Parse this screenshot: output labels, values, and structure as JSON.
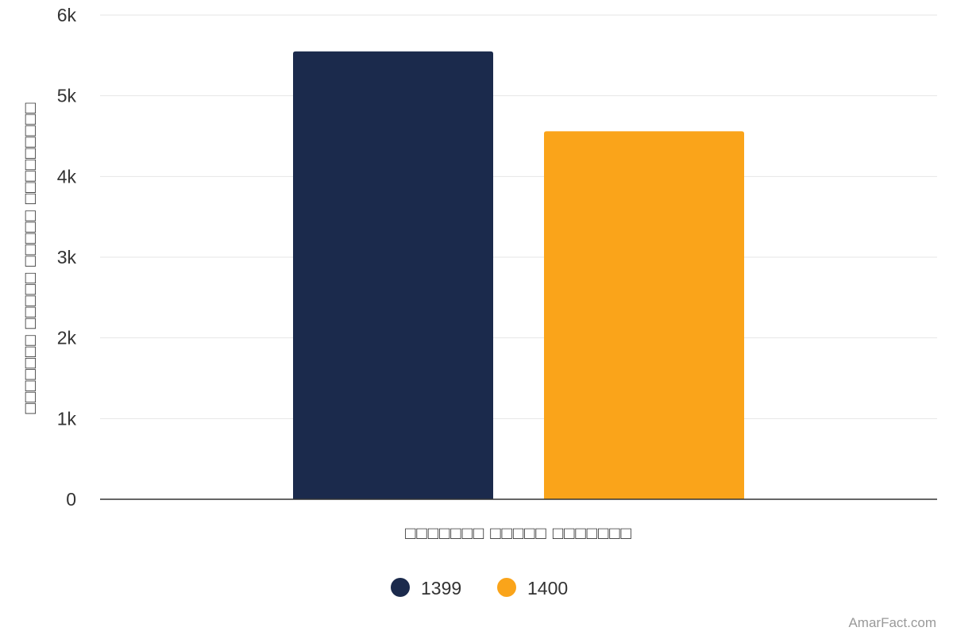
{
  "chart_data": {
    "type": "bar",
    "title": "",
    "xlabel": "□□□□□□□ □□□□□ □□□□□□□",
    "ylabel": "□□□□□□□ □□□□□ □□□□□ □□□□□□□□□",
    "categories": [
      "□□□□□□□ □□□□□ □□□□□□□"
    ],
    "series": [
      {
        "name": "1399",
        "values": [
          5550
        ],
        "color": "#1b2a4c"
      },
      {
        "name": "1400",
        "values": [
          4560
        ],
        "color": "#faa41a"
      }
    ],
    "ylim": [
      0,
      6000
    ],
    "yticks": [
      0,
      1000,
      2000,
      3000,
      4000,
      5000,
      6000
    ],
    "ytick_labels": [
      "0",
      "1k",
      "2k",
      "3k",
      "4k",
      "5k",
      "6k"
    ],
    "grid": true,
    "legend_position": "bottom-center"
  },
  "credit": "AmarFact.com"
}
